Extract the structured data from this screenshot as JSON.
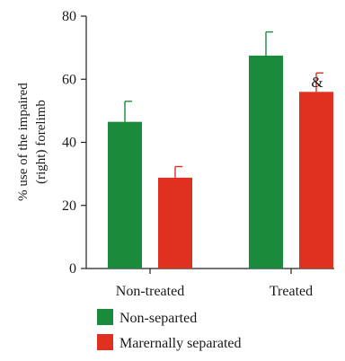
{
  "chart_data": {
    "type": "bar",
    "categories": [
      "Non-treated",
      "Treated"
    ],
    "series": [
      {
        "name": "Non-separted",
        "color": "#1a8a3c",
        "values": [
          46.5,
          67.5
        ],
        "errors": [
          6.5,
          7.5
        ]
      },
      {
        "name": "Marernally separated",
        "color": "#e03020",
        "values": [
          28.8,
          56
        ],
        "errors": [
          3.5,
          6.0
        ]
      }
    ],
    "ylabel_lines": [
      "% use of the impaired",
      "(right) forelimb"
    ],
    "ylim": [
      0,
      80
    ],
    "yticks": [
      0,
      20,
      40,
      60,
      80
    ],
    "grid": false,
    "legend_position": "bottom-center",
    "annotations": [
      {
        "text": "&",
        "category": "Treated",
        "series": "Marernally separated"
      }
    ]
  }
}
